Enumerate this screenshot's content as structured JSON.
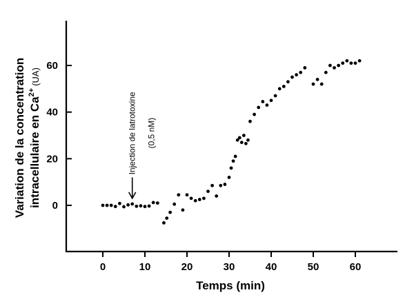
{
  "chart_data": {
    "type": "scatter",
    "xlabel": "Temps (min)",
    "ylabel_line1": "Variation de la concentration",
    "ylabel_line2_main": "intracellulaire en Ca",
    "ylabel_line2_sup": "2+",
    "ylabel_unit": "(UA)",
    "xlim": [
      -8,
      70
    ],
    "ylim": [
      -20,
      80
    ],
    "xticks": [
      0,
      10,
      20,
      30,
      40,
      50,
      60
    ],
    "yticks": [
      0,
      20,
      40,
      60
    ],
    "annotation": {
      "line1": "Injection de latrotoxine",
      "line2": "(0,5 nM)",
      "arrow_x": 7,
      "arrow_from_y": 12,
      "arrow_to_y": 3
    },
    "points": [
      [
        0,
        0
      ],
      [
        1,
        0
      ],
      [
        2,
        0
      ],
      [
        3,
        -0.5
      ],
      [
        4,
        0.8
      ],
      [
        5,
        -0.6
      ],
      [
        6,
        0.2
      ],
      [
        7,
        0.6
      ],
      [
        8,
        -0.4
      ],
      [
        9,
        -0.2
      ],
      [
        10,
        -0.5
      ],
      [
        11,
        -0.3
      ],
      [
        12,
        1.2
      ],
      [
        13,
        1
      ],
      [
        14.5,
        -7.5
      ],
      [
        15.2,
        -5.5
      ],
      [
        16,
        -3
      ],
      [
        17,
        0.5
      ],
      [
        18,
        4.5
      ],
      [
        19,
        -2
      ],
      [
        20,
        4.5
      ],
      [
        21,
        3
      ],
      [
        22,
        2
      ],
      [
        23,
        2.5
      ],
      [
        24,
        3
      ],
      [
        25,
        6
      ],
      [
        26,
        8.5
      ],
      [
        27,
        4
      ],
      [
        28,
        8.5
      ],
      [
        29,
        9
      ],
      [
        30,
        12
      ],
      [
        30.5,
        16
      ],
      [
        31,
        19
      ],
      [
        31.5,
        21
      ],
      [
        32,
        28
      ],
      [
        32.5,
        29
      ],
      [
        33,
        27
      ],
      [
        33.5,
        30
      ],
      [
        34,
        26.5
      ],
      [
        34.5,
        28
      ],
      [
        35,
        36
      ],
      [
        36,
        39
      ],
      [
        37,
        42
      ],
      [
        38,
        44.5
      ],
      [
        39,
        43
      ],
      [
        40,
        45
      ],
      [
        41,
        47
      ],
      [
        42,
        50
      ],
      [
        43,
        51
      ],
      [
        44,
        53
      ],
      [
        45,
        55
      ],
      [
        46,
        56
      ],
      [
        47,
        57
      ],
      [
        48,
        59
      ],
      [
        50,
        52
      ],
      [
        51,
        54
      ],
      [
        52,
        52
      ],
      [
        53,
        57
      ],
      [
        54,
        60
      ],
      [
        55,
        59
      ],
      [
        56,
        60
      ],
      [
        57,
        61
      ],
      [
        58,
        62
      ],
      [
        59,
        61
      ],
      [
        60,
        61
      ],
      [
        61,
        62
      ]
    ]
  }
}
